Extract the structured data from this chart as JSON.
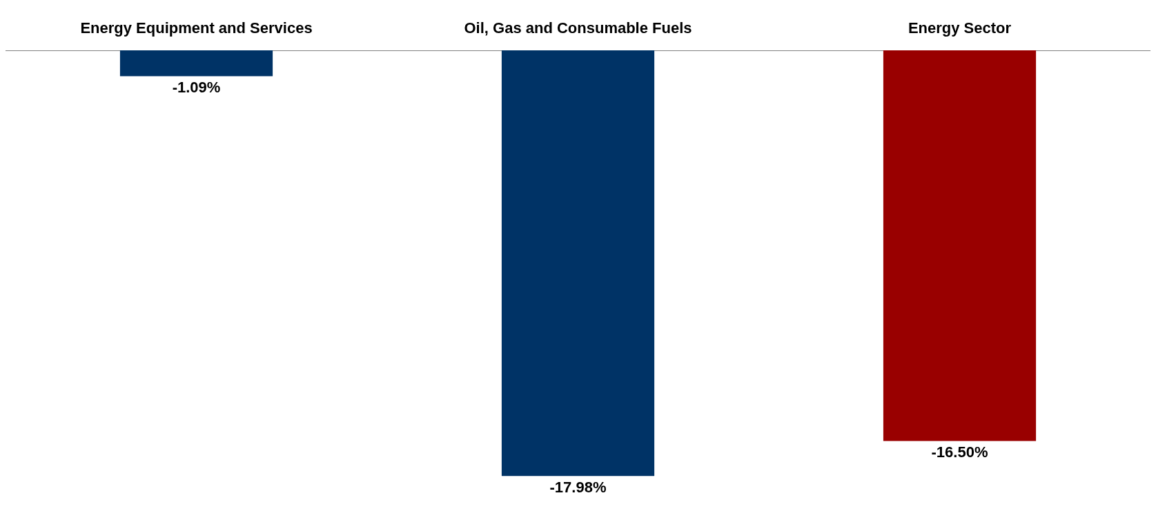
{
  "chart_data": {
    "type": "bar",
    "categories": [
      "Energy Equipment and Services",
      "Oil, Gas and Consumable Fuels",
      "Energy Sector"
    ],
    "values": [
      -1.09,
      -17.98,
      -16.5
    ],
    "colors": [
      "#003366",
      "#003366",
      "#990000"
    ],
    "value_labels": [
      "-1.09%",
      "-17.98%",
      "-16.50%"
    ],
    "tick_labels": "x"
  }
}
